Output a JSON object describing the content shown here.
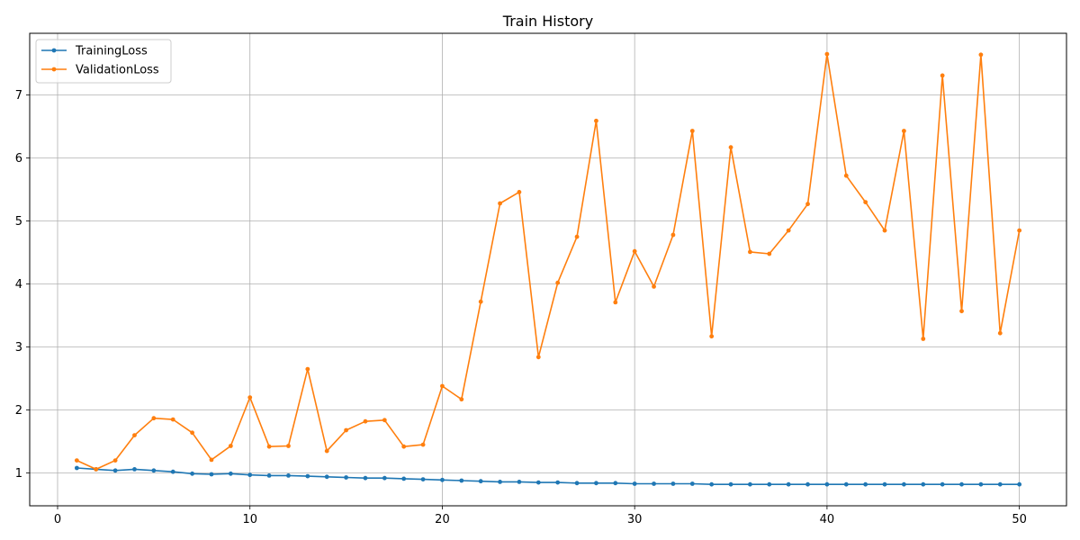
{
  "chart_data": {
    "type": "line",
    "title": "Train History",
    "xlabel": "",
    "ylabel": "",
    "xlim": [
      -1.45,
      52.45
    ],
    "ylim": [
      0.48,
      7.98
    ],
    "x_ticks": [
      0,
      10,
      20,
      30,
      40,
      50
    ],
    "y_ticks": [
      1,
      2,
      3,
      4,
      5,
      6,
      7
    ],
    "grid": true,
    "legend_position": "top-left",
    "x": [
      1,
      2,
      3,
      4,
      5,
      6,
      7,
      8,
      9,
      10,
      11,
      12,
      13,
      14,
      15,
      16,
      17,
      18,
      19,
      20,
      21,
      22,
      23,
      24,
      25,
      26,
      27,
      28,
      29,
      30,
      31,
      32,
      33,
      34,
      35,
      36,
      37,
      38,
      39,
      40,
      41,
      42,
      43,
      44,
      45,
      46,
      47,
      48,
      49,
      50
    ],
    "series": [
      {
        "name": "TrainingLoss",
        "color": "#1f77b4",
        "values": [
          1.08,
          1.06,
          1.04,
          1.06,
          1.04,
          1.02,
          0.99,
          0.98,
          0.99,
          0.97,
          0.96,
          0.96,
          0.95,
          0.94,
          0.93,
          0.92,
          0.92,
          0.91,
          0.9,
          0.89,
          0.88,
          0.87,
          0.86,
          0.86,
          0.85,
          0.85,
          0.84,
          0.84,
          0.84,
          0.83,
          0.83,
          0.83,
          0.83,
          0.82,
          0.82,
          0.82,
          0.82,
          0.82,
          0.82,
          0.82,
          0.82,
          0.82,
          0.82,
          0.82,
          0.82,
          0.82,
          0.82,
          0.82,
          0.82,
          0.82
        ]
      },
      {
        "name": "ValidationLoss",
        "color": "#ff7f0e",
        "values": [
          1.2,
          1.06,
          1.2,
          1.6,
          1.87,
          1.85,
          1.64,
          1.21,
          1.43,
          2.2,
          1.42,
          1.43,
          2.65,
          1.35,
          1.68,
          1.82,
          1.84,
          1.42,
          1.45,
          2.38,
          2.17,
          3.72,
          5.28,
          5.46,
          2.84,
          4.02,
          4.75,
          6.59,
          3.71,
          4.52,
          3.96,
          4.78,
          6.43,
          3.17,
          6.17,
          4.51,
          4.48,
          4.85,
          5.27,
          7.65,
          5.72,
          5.3,
          4.85,
          6.43,
          3.13,
          7.31,
          3.57,
          7.64,
          3.22,
          4.85
        ]
      }
    ]
  }
}
